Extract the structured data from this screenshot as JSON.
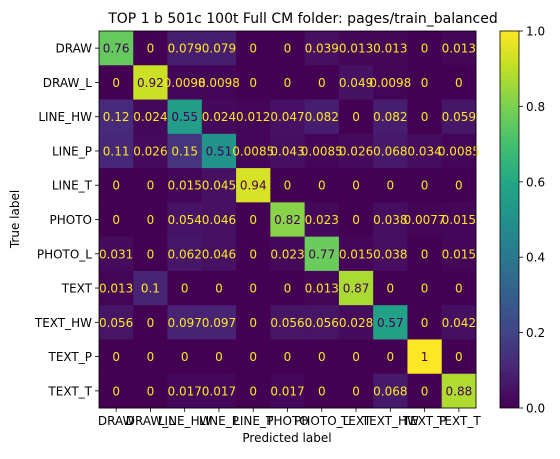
{
  "chart_data": {
    "type": "heatmap",
    "title": "TOP 1 b 501c 100t  Full CM folder: pages/train_balanced",
    "xlabel": "Predicted label",
    "ylabel": "True label",
    "x_categories": [
      "DRAW",
      "DRAW_L",
      "LINE_HW",
      "LINE_P",
      "LINE_T",
      "PHOTO",
      "PHOTO_L",
      "TEXT",
      "TEXT_HW",
      "TEXT_P",
      "TEXT_T"
    ],
    "y_categories": [
      "DRAW",
      "DRAW_L",
      "LINE_HW",
      "LINE_P",
      "LINE_T",
      "PHOTO",
      "PHOTO_L",
      "TEXT",
      "TEXT_HW",
      "TEXT_P",
      "TEXT_T"
    ],
    "cell_labels": [
      [
        "0.76",
        "0",
        "0.079",
        "0.079",
        "0",
        "0",
        "0.039",
        "0.013",
        "0.013",
        "0",
        "0.013"
      ],
      [
        "0",
        "0.92",
        "0.0098",
        "0.0098",
        "0",
        "0",
        "0",
        "0.049",
        "0.0098",
        "0",
        "0"
      ],
      [
        "0.12",
        "0.024",
        "0.55",
        "0.024",
        "0.012",
        "0.047",
        "0.082",
        "0",
        "0.082",
        "0",
        "0.059"
      ],
      [
        "0.11",
        "0.026",
        "0.15",
        "0.51",
        "0.0085",
        "0.043",
        "0.0085",
        "0.026",
        "0.068",
        "0.034",
        "0.0085"
      ],
      [
        "0",
        "0",
        "0.015",
        "0.045",
        "0.94",
        "0",
        "0",
        "0",
        "0",
        "0",
        "0"
      ],
      [
        "0",
        "0",
        "0.054",
        "0.046",
        "0",
        "0.82",
        "0.023",
        "0",
        "0.038",
        "0.0077",
        "0.015"
      ],
      [
        "0.031",
        "0",
        "0.062",
        "0.046",
        "0",
        "0.023",
        "0.77",
        "0.015",
        "0.038",
        "0",
        "0.015"
      ],
      [
        "0.013",
        "0.1",
        "0",
        "0",
        "0",
        "0",
        "0.013",
        "0.87",
        "0",
        "0",
        "0"
      ],
      [
        "0.056",
        "0",
        "0.097",
        "0.097",
        "0",
        "0.056",
        "0.056",
        "0.028",
        "0.57",
        "0",
        "0.042"
      ],
      [
        "0",
        "0",
        "0",
        "0",
        "0",
        "0",
        "0",
        "0",
        "0",
        "1",
        "0"
      ],
      [
        "0",
        "0",
        "0.017",
        "0.017",
        "0",
        "0.017",
        "0",
        "0",
        "0.068",
        "0",
        "0.88"
      ]
    ],
    "colormap": "viridis",
    "colorbar_ticks": [
      "0.0",
      "0.2",
      "0.4",
      "0.6",
      "0.8",
      "1.0"
    ],
    "vmin": 0,
    "vmax": 1
  }
}
